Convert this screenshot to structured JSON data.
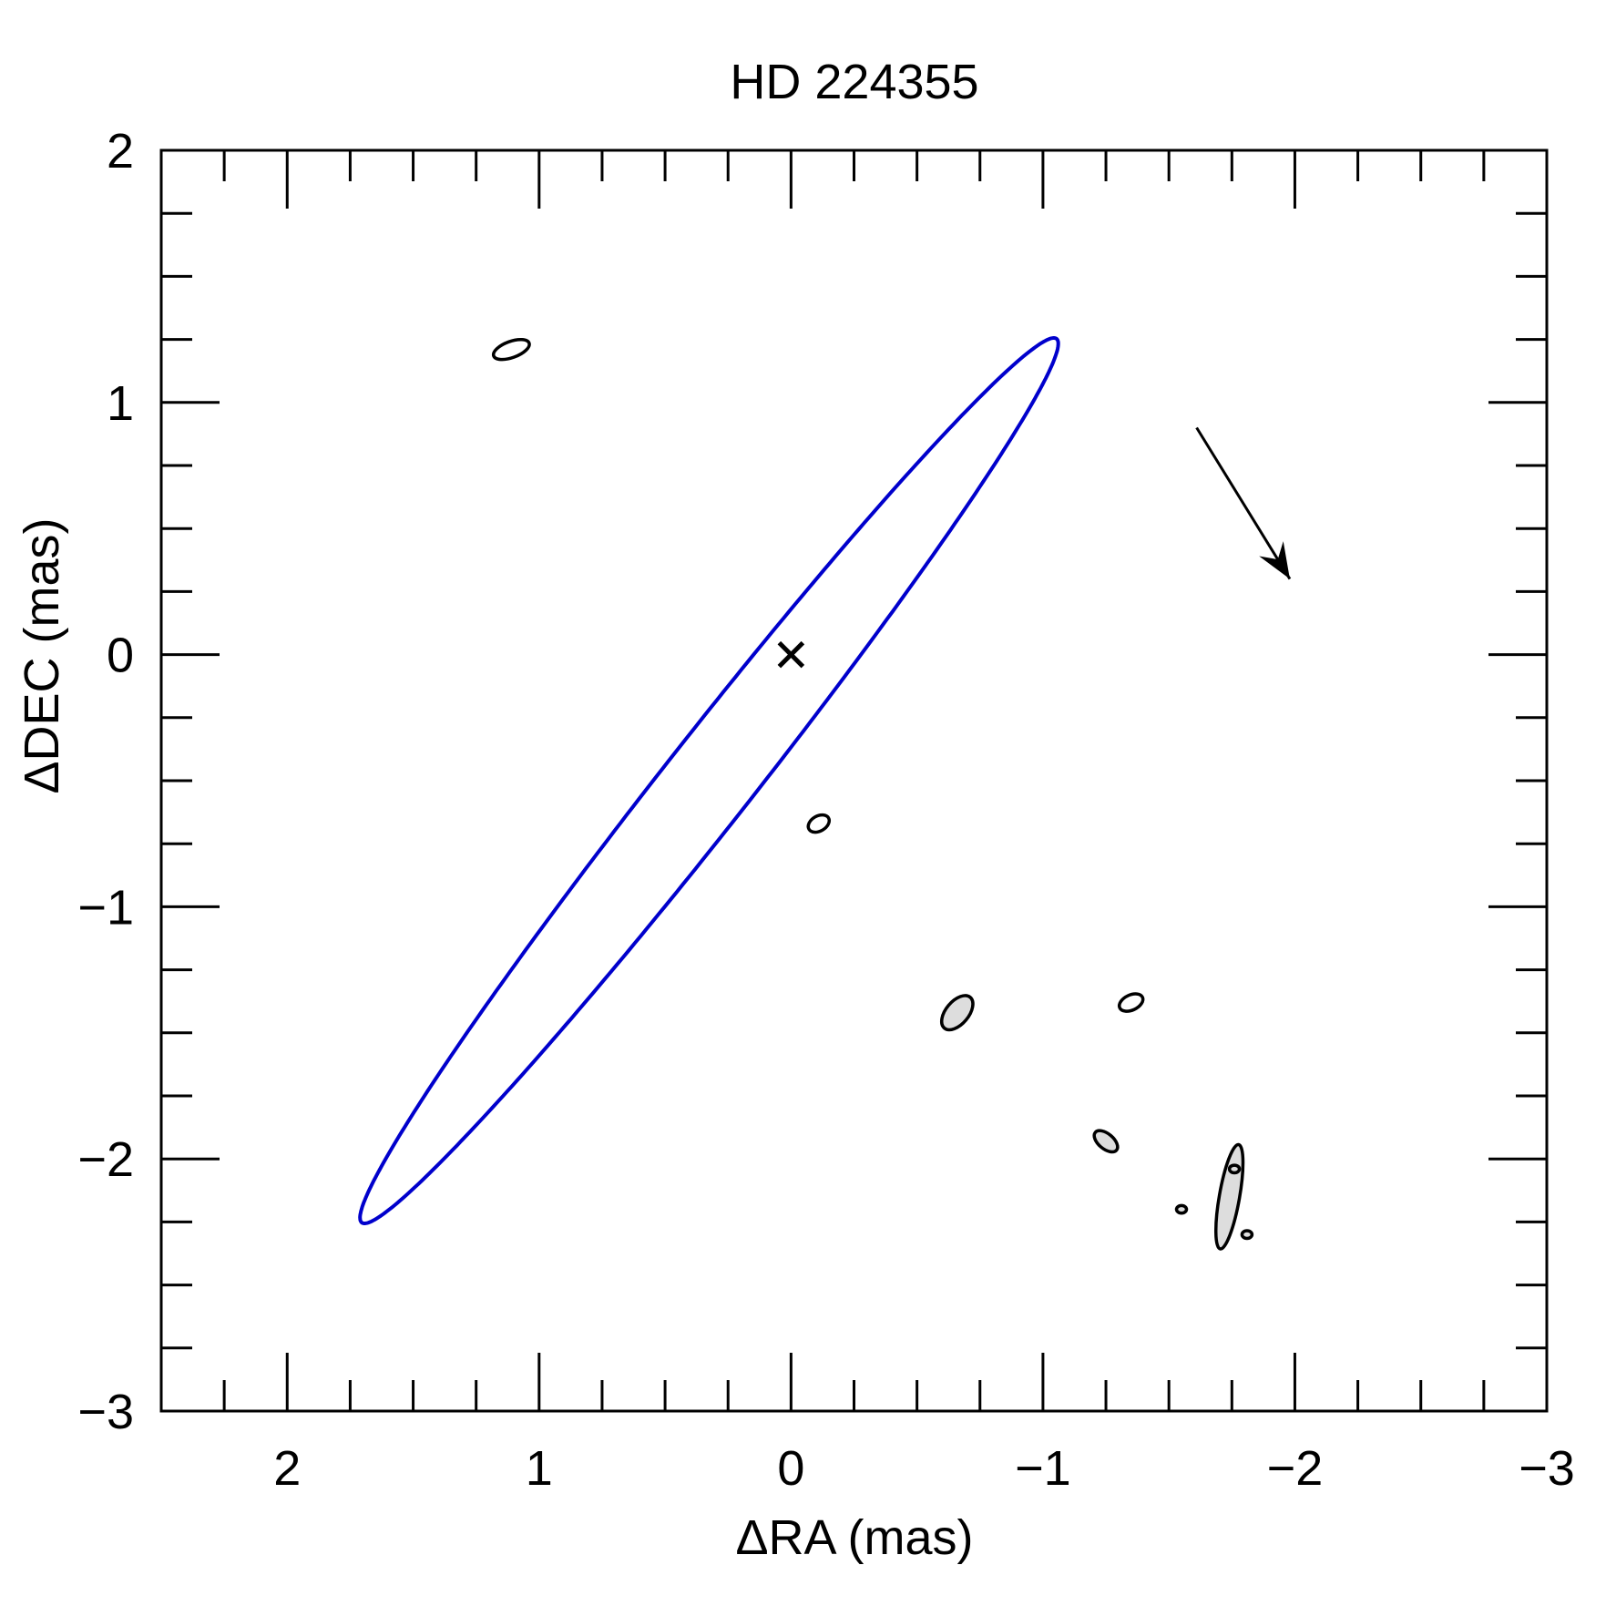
{
  "chart_data": {
    "type": "scatter",
    "title": "HD 224355",
    "xlabel": "ΔRA (mas)",
    "ylabel": "ΔDEC (mas)",
    "xlim": [
      2.5,
      -3
    ],
    "ylim": [
      -3,
      2
    ],
    "x_ticks": [
      {
        "value": 2,
        "label": "2"
      },
      {
        "value": 1,
        "label": "1"
      },
      {
        "value": 0,
        "label": "0"
      },
      {
        "value": -1,
        "label": "−1"
      },
      {
        "value": -2,
        "label": "−2"
      },
      {
        "value": -3,
        "label": "−3"
      }
    ],
    "y_ticks": [
      {
        "value": 2,
        "label": "2"
      },
      {
        "value": 1,
        "label": "1"
      },
      {
        "value": 0,
        "label": "0"
      },
      {
        "value": -1,
        "label": "−1"
      },
      {
        "value": -2,
        "label": "−2"
      },
      {
        "value": -3,
        "label": "−3"
      }
    ],
    "minor_tick_step": 0.25,
    "grid": false,
    "orbit": {
      "color": "#0000cc",
      "center": [
        0.325,
        -0.5
      ],
      "semi_major": 2.23,
      "semi_minor": 0.175,
      "major_axis_direction_deg": 128.2
    },
    "primary_marker": {
      "x": 0,
      "y": 0,
      "symbol": "cross"
    },
    "measurements": [
      {
        "x": 1.11,
        "y": 1.21,
        "err_a": 0.075,
        "err_b": 0.032,
        "angle_deg": 20,
        "filled": false
      },
      {
        "x": -0.11,
        "y": -0.67,
        "err_a": 0.045,
        "err_b": 0.03,
        "angle_deg": 30,
        "filled": false
      },
      {
        "x": -0.66,
        "y": -1.42,
        "err_a": 0.08,
        "err_b": 0.045,
        "angle_deg": 50,
        "filled": true
      },
      {
        "x": -1.35,
        "y": -1.38,
        "err_a": 0.05,
        "err_b": 0.03,
        "angle_deg": 25,
        "filled": false
      },
      {
        "x": -1.25,
        "y": -1.93,
        "err_a": 0.055,
        "err_b": 0.03,
        "angle_deg": -40,
        "filled": true
      },
      {
        "x": -1.55,
        "y": -2.2,
        "err_a": 0.02,
        "err_b": 0.015,
        "angle_deg": 0,
        "filled": true
      },
      {
        "x": -1.74,
        "y": -2.15,
        "err_a": 0.21,
        "err_b": 0.04,
        "angle_deg": 80,
        "filled": true
      },
      {
        "x": -1.76,
        "y": -2.04,
        "err_a": 0.02,
        "err_b": 0.015,
        "angle_deg": 0,
        "filled": true
      },
      {
        "x": -1.81,
        "y": -2.3,
        "err_a": 0.02,
        "err_b": 0.015,
        "angle_deg": 0,
        "filled": true
      }
    ],
    "motion_arrow": {
      "from": [
        -1.61,
        0.9
      ],
      "to": [
        -1.98,
        0.3
      ]
    }
  }
}
